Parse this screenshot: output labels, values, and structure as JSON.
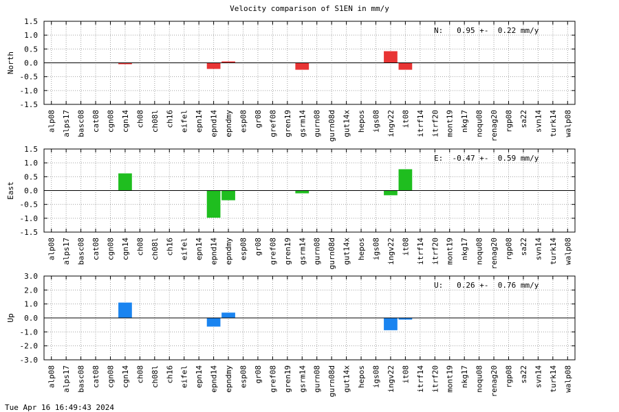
{
  "title": "Velocity comparison of S1EN in mm/y",
  "timestamp": "Tue Apr 16 16:49:43 2024",
  "colors": {
    "north": "#e83434",
    "east": "#1fbe1f",
    "up": "#1a84f0"
  },
  "chart_data": [
    {
      "type": "bar",
      "ylabel": "North",
      "annotation": "N:   0.95 +-  0.22 mm/y",
      "ylim": [
        -1.5,
        1.5
      ],
      "yticks": [
        "1.5",
        "1.0",
        "0.5",
        "0.0",
        "-0.5",
        "-1.0",
        "-1.5"
      ],
      "grid": true,
      "categories": [
        "alp08",
        "alps17",
        "basc08",
        "cat08",
        "cgn08",
        "cgn14",
        "ch08",
        "ch08l",
        "ch16",
        "eifel",
        "epn14",
        "epnd14",
        "epndmy",
        "esp08",
        "gr08",
        "gref08",
        "gren19",
        "gsrm14",
        "gurn08",
        "gurn08d",
        "gut14x",
        "hepos",
        "igs08",
        "ingv22",
        "it08",
        "itrf14",
        "itrf20",
        "mont19",
        "nkg17",
        "noqu08",
        "renag20",
        "rgp08",
        "sa22",
        "svn14",
        "turk14",
        "walp08"
      ],
      "values": [
        0,
        0,
        0,
        0,
        0,
        -0.05,
        0,
        0,
        0,
        0,
        0,
        -0.22,
        0.05,
        0,
        0,
        0,
        0,
        -0.25,
        0,
        0,
        0,
        0,
        0,
        0.42,
        -0.25,
        0,
        0,
        0,
        0,
        0,
        0,
        0,
        0,
        0,
        0,
        0
      ]
    },
    {
      "type": "bar",
      "ylabel": "East",
      "annotation": "E:  -0.47 +-  0.59 mm/y",
      "ylim": [
        -1.5,
        1.5
      ],
      "yticks": [
        "1.5",
        "1.0",
        "0.5",
        "0.0",
        "-0.5",
        "-1.0",
        "-1.5"
      ],
      "grid": true,
      "categories": [
        "alp08",
        "alps17",
        "basc08",
        "cat08",
        "cgn08",
        "cgn14",
        "ch08",
        "ch08l",
        "ch16",
        "eifel",
        "epn14",
        "epnd14",
        "epndmy",
        "esp08",
        "gr08",
        "gref08",
        "gren19",
        "gsrm14",
        "gurn08",
        "gurn08d",
        "gut14x",
        "hepos",
        "igs08",
        "ingv22",
        "it08",
        "itrf14",
        "itrf20",
        "mont19",
        "nkg17",
        "noqu08",
        "renag20",
        "rgp08",
        "sa22",
        "svn14",
        "turk14",
        "walp08"
      ],
      "values": [
        0,
        0,
        0,
        0,
        0,
        0.62,
        0,
        0,
        0,
        0,
        0,
        -0.98,
        -0.35,
        0,
        0,
        0,
        0,
        -0.1,
        0,
        0,
        0,
        0,
        0,
        -0.17,
        0.77,
        0,
        0,
        0,
        0,
        0,
        0,
        0,
        0,
        0,
        0,
        0
      ]
    },
    {
      "type": "bar",
      "ylabel": "Up",
      "annotation": "U:   0.26 +-  0.76 mm/y",
      "ylim": [
        -3.0,
        3.0
      ],
      "yticks": [
        "3.0",
        "2.0",
        "1.0",
        "0.0",
        "-1.0",
        "-2.0",
        "-3.0"
      ],
      "grid": true,
      "categories": [
        "alp08",
        "alps17",
        "basc08",
        "cat08",
        "cgn08",
        "cgn14",
        "ch08",
        "ch08l",
        "ch16",
        "eifel",
        "epn14",
        "epnd14",
        "epndmy",
        "esp08",
        "gr08",
        "gref08",
        "gren19",
        "gsrm14",
        "gurn08",
        "gurn08d",
        "gut14x",
        "hepos",
        "igs08",
        "ingv22",
        "it08",
        "itrf14",
        "itrf20",
        "mont19",
        "nkg17",
        "noqu08",
        "renag20",
        "rgp08",
        "sa22",
        "svn14",
        "turk14",
        "walp08"
      ],
      "values": [
        0,
        0,
        0,
        0,
        0,
        1.1,
        0,
        0,
        0,
        0,
        0,
        -0.62,
        0.38,
        0,
        0,
        0,
        0,
        0,
        0,
        0,
        0,
        0,
        0,
        -0.88,
        -0.12,
        0,
        0,
        0,
        0,
        0,
        0,
        0,
        0,
        0,
        0,
        0
      ]
    }
  ]
}
